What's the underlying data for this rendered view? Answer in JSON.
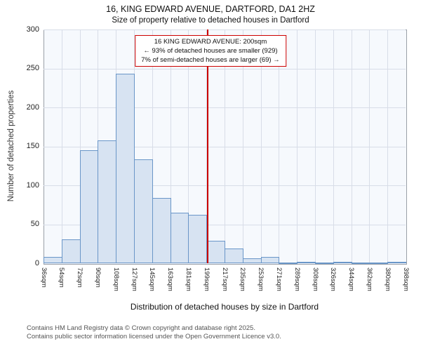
{
  "title": "16, KING EDWARD AVENUE, DARTFORD, DA1 2HZ",
  "subtitle": "Size of property relative to detached houses in Dartford",
  "annotation": {
    "line1": "16 KING EDWARD AVENUE: 200sqm",
    "line2": "← 93% of detached houses are smaller (929)",
    "line3": "7% of semi-detached houses are larger (69) →"
  },
  "chart_data": {
    "type": "bar",
    "title": "Size of property relative to detached houses in Dartford",
    "xlabel": "Distribution of detached houses by size in Dartford",
    "ylabel": "Number of detached properties",
    "ylim": [
      0,
      300
    ],
    "yticks": [
      0,
      50,
      100,
      150,
      200,
      250,
      300
    ],
    "bin_edges": [
      36,
      54,
      72,
      90,
      108,
      127,
      145,
      163,
      181,
      199,
      217,
      235,
      253,
      271,
      289,
      308,
      326,
      344,
      362,
      380,
      398
    ],
    "bin_edge_labels": [
      "36sqm",
      "54sqm",
      "72sqm",
      "90sqm",
      "108sqm",
      "127sqm",
      "145sqm",
      "163sqm",
      "181sqm",
      "199sqm",
      "217sqm",
      "235sqm",
      "253sqm",
      "271sqm",
      "289sqm",
      "308sqm",
      "326sqm",
      "344sqm",
      "362sqm",
      "380sqm",
      "398sqm"
    ],
    "values": [
      8,
      31,
      145,
      158,
      243,
      133,
      84,
      65,
      62,
      29,
      19,
      6,
      8,
      1,
      2,
      1,
      2,
      1,
      1,
      2
    ],
    "marker": {
      "value_sqm": 200,
      "label": "16 KING EDWARD AVENUE: 200sqm"
    },
    "legend": null,
    "grid": true,
    "colors": {
      "bar_fill": "#d7e3f2",
      "bar_border": "#6a96c8",
      "marker": "#cc0000",
      "grid": "#d8dde8",
      "plot_bg": "#f6f9fd"
    }
  },
  "footer": {
    "line1": "Contains HM Land Registry data © Crown copyright and database right 2025.",
    "line2": "Contains public sector information licensed under the Open Government Licence v3.0."
  }
}
